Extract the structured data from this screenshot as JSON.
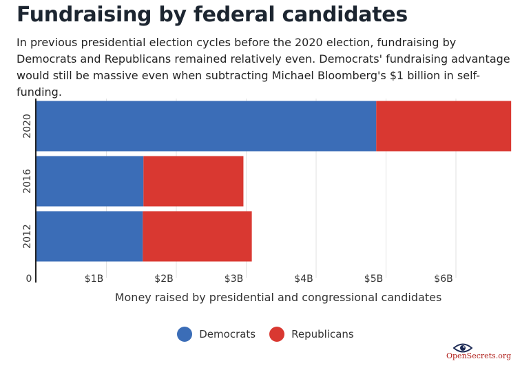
{
  "header": {
    "title": "Fundraising by federal candidates",
    "subtitle": "In previous presidential election cycles before the 2020 election, fundraising by Democrats and Republicans remained  relatively even. Democrats' fundraising advantage would still be massive even when subtracting Michael Bloomberg's $1 billion in self-funding."
  },
  "legend": {
    "items": [
      {
        "label": "Democrats",
        "color": "#3b6db7"
      },
      {
        "label": "Republicans",
        "color": "#d93831"
      }
    ],
    "placement": "bottom-center"
  },
  "logo": {
    "text": "OpenSecrets.org",
    "icon": "eye-icon"
  },
  "chart_data": {
    "type": "bar",
    "orientation": "horizontal",
    "stacked": true,
    "categories": [
      "2020",
      "2016",
      "2012"
    ],
    "series": [
      {
        "name": "Democrats",
        "color": "#3b6db7",
        "values": [
          4.86,
          1.53,
          1.52
        ]
      },
      {
        "name": "Republicans",
        "color": "#d93831",
        "values": [
          1.93,
          1.43,
          1.56
        ]
      }
    ],
    "xlabel": "Money raised by presidential and congressional candidates",
    "xticks": [
      "0",
      "$1B",
      "$2B",
      "$3B",
      "$4B",
      "$5B",
      "$6B"
    ],
    "xlim": [
      0,
      6.8
    ],
    "grid": true
  }
}
